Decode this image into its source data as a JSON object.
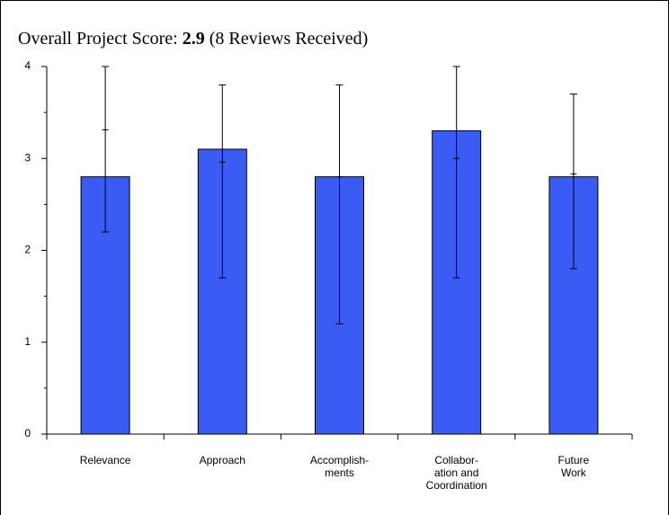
{
  "chart_data": {
    "type": "bar",
    "title": {
      "label": "Overall Project Score:",
      "score": "2.9",
      "note": "(8 Reviews Received)"
    },
    "categories": [
      [
        "Relevance"
      ],
      [
        "Approach"
      ],
      [
        "Accomplish-",
        "ments"
      ],
      [
        "Collabor-",
        "ation and",
        "Coordination"
      ],
      [
        "Future",
        "Work"
      ]
    ],
    "values": [
      2.8,
      3.1,
      2.8,
      3.3,
      2.8
    ],
    "low": [
      2.2,
      1.7,
      1.2,
      1.7,
      1.8
    ],
    "high": [
      4.0,
      3.8,
      3.8,
      4.0,
      3.7
    ],
    "marker": [
      3.31,
      2.96,
      2.8,
      3.0,
      2.83
    ],
    "color": "#3a5cf5",
    "ylim": [
      0,
      4
    ],
    "yticks": [
      0,
      1,
      2,
      3,
      4
    ],
    "grid": false
  }
}
